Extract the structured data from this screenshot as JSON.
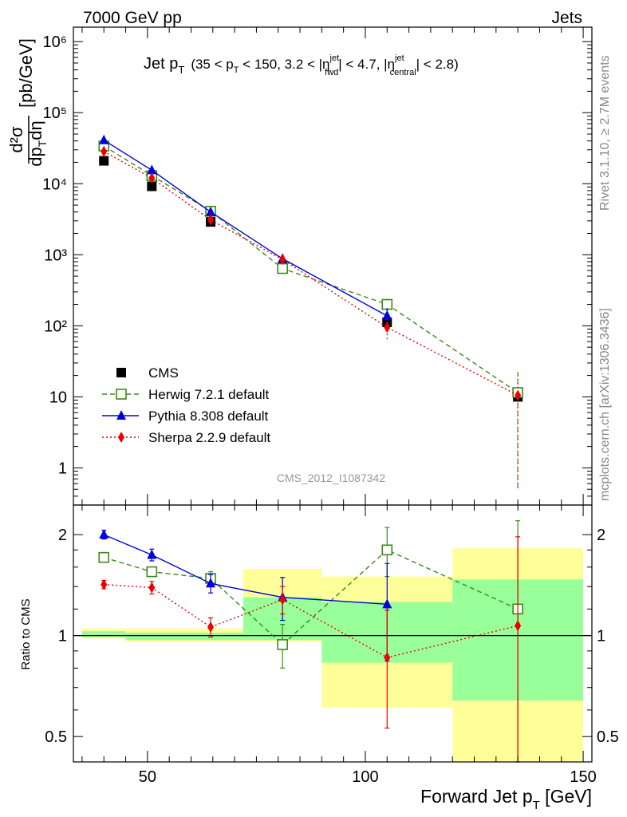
{
  "header": {
    "left": "7000 GeV pp",
    "right": "Jets"
  },
  "side_labels": {
    "rivet": "Rivet 3.1.10, ≥ 2.7M events",
    "mcplots": "mcplots.cern.ch [arXiv:1306.3436]"
  },
  "analysis_id": "CMS_2012_I1087342",
  "colors": {
    "cms": "#000000",
    "herwig": "#3a8a1a",
    "pythia": "#0000dd",
    "sherpa": "#ee0000",
    "band_yellow": "#ffff99",
    "band_green": "#99ff99"
  },
  "chart_data": [
    {
      "panel": "main",
      "type": "line",
      "title": "Jet p_T (35 < p_T < 150, 3.2 < |η_fwd^jet| < 4.7, |η_central^jet| < 2.8)",
      "title_parts": {
        "main": "Jet p",
        "main_sub": "T",
        "cut1": "(35 < p",
        "cut1_sub": "T",
        "cut2": " < 150, 3.2 < |η",
        "eta_sup": "jet",
        "eta_sub_fwd": "fwd",
        "cut3": "| < 4.7, |η",
        "eta_sub_central": "central",
        "cut4": "| < 2.8)"
      },
      "ylabel_parts": {
        "num": "d²σ",
        "den": "dp",
        "den_sub": "T",
        "den_eta": "dη",
        "unit": "[pb/GeV]"
      },
      "yscale": "log",
      "ylim": [
        0.3,
        1600000
      ],
      "xlim": [
        33,
        152
      ],
      "y_ticks": [
        {
          "value": 1,
          "label": "1"
        },
        {
          "value": 10,
          "label": "10"
        },
        {
          "value": 100,
          "label": "10²"
        },
        {
          "value": 1000,
          "label": "10³"
        },
        {
          "value": 10000,
          "label": "10⁴"
        },
        {
          "value": 100000,
          "label": "10⁵"
        },
        {
          "value": 1000000,
          "label": "10⁶"
        }
      ],
      "legend_position": "lower-left",
      "series": [
        {
          "name": "CMS",
          "style": "square-filled",
          "color": "#000000",
          "x": [
            40,
            51,
            64.5,
            81,
            105,
            135
          ],
          "y": [
            21000,
            9200,
            2900,
            680,
            112,
            10
          ]
        },
        {
          "name": "Herwig 7.2.1 default",
          "style": "square-open-dashed",
          "color": "#3a8a1a",
          "x": [
            40,
            51,
            64.5,
            81,
            105,
            135
          ],
          "y": [
            34000,
            13000,
            4100,
            640,
            200,
            11.5
          ],
          "err": [
            2000,
            800,
            300,
            90,
            40,
            11
          ]
        },
        {
          "name": "Pythia 8.308 default",
          "style": "triangle-solid",
          "color": "#0000dd",
          "x": [
            40,
            51,
            64.5,
            81,
            105,
            135
          ],
          "y": [
            41000,
            15500,
            4000,
            880,
            138,
            null
          ],
          "err": [
            2000,
            800,
            250,
            130,
            40,
            null
          ]
        },
        {
          "name": "Sherpa 2.2.9 default",
          "style": "diamond-dotted",
          "color": "#ee0000",
          "x": [
            40,
            51,
            64.5,
            81,
            105,
            135
          ],
          "y": [
            28500,
            12000,
            3100,
            860,
            95,
            10.5
          ],
          "err": [
            1500,
            700,
            300,
            100,
            35,
            10
          ]
        }
      ]
    },
    {
      "panel": "ratio",
      "type": "line",
      "ylabel": "Ratio to CMS",
      "xlabel_parts": {
        "main": "Forward Jet p",
        "sub": "T",
        "unit": " [GeV]"
      },
      "yscale": "log",
      "ylim": [
        0.42,
        2.45
      ],
      "xlim": [
        33,
        152
      ],
      "x_ticks": [
        50,
        100,
        150
      ],
      "y_ticks": [
        {
          "value": 0.5,
          "label": "0.5"
        },
        {
          "value": 1,
          "label": "1"
        },
        {
          "value": 2,
          "label": "2"
        }
      ],
      "bands": [
        {
          "x0": 35,
          "x1": 45,
          "yellow": [
            0.98,
            1.05
          ],
          "green": [
            0.99,
            1.03
          ]
        },
        {
          "x0": 45,
          "x1": 72,
          "yellow": [
            0.96,
            1.05
          ],
          "green": [
            0.97,
            1.02
          ]
        },
        {
          "x0": 72,
          "x1": 90,
          "yellow": [
            0.96,
            1.58
          ],
          "green": [
            0.97,
            1.3
          ]
        },
        {
          "x0": 90,
          "x1": 120,
          "yellow": [
            0.61,
            1.5
          ],
          "green": [
            0.83,
            1.26
          ]
        },
        {
          "x0": 120,
          "x1": 150,
          "yellow": [
            0.42,
            1.82
          ],
          "green": [
            0.64,
            1.47
          ]
        }
      ],
      "series": [
        {
          "name": "Herwig 7.2.1 default",
          "color": "#3a8a1a",
          "x": [
            40,
            51,
            64.5,
            81,
            105,
            135
          ],
          "y": [
            1.71,
            1.55,
            1.48,
            0.94,
            1.8,
            1.2
          ],
          "err_lo": [
            0.05,
            0.05,
            0.07,
            0.14,
            0.3,
            0.8
          ],
          "err_hi": [
            0.05,
            0.05,
            0.07,
            0.14,
            0.3,
            1.0
          ]
        },
        {
          "name": "Pythia 8.308 default",
          "color": "#0000dd",
          "x": [
            40,
            51,
            64.5,
            81,
            105
          ],
          "y": [
            2.0,
            1.74,
            1.43,
            1.3,
            1.24
          ],
          "err_lo": [
            0.06,
            0.07,
            0.09,
            0.19,
            0.4
          ],
          "err_hi": [
            0.06,
            0.07,
            0.09,
            0.19,
            0.4
          ]
        },
        {
          "name": "Sherpa 2.2.9 default",
          "color": "#ee0000",
          "x": [
            40,
            51,
            64.5,
            81,
            105,
            135
          ],
          "y": [
            1.42,
            1.39,
            1.06,
            1.28,
            0.86,
            1.07
          ],
          "err_lo": [
            0.04,
            0.06,
            0.07,
            0.12,
            0.33,
            0.9
          ],
          "err_hi": [
            0.04,
            0.06,
            0.07,
            0.12,
            0.33,
            0.9
          ]
        }
      ]
    }
  ]
}
